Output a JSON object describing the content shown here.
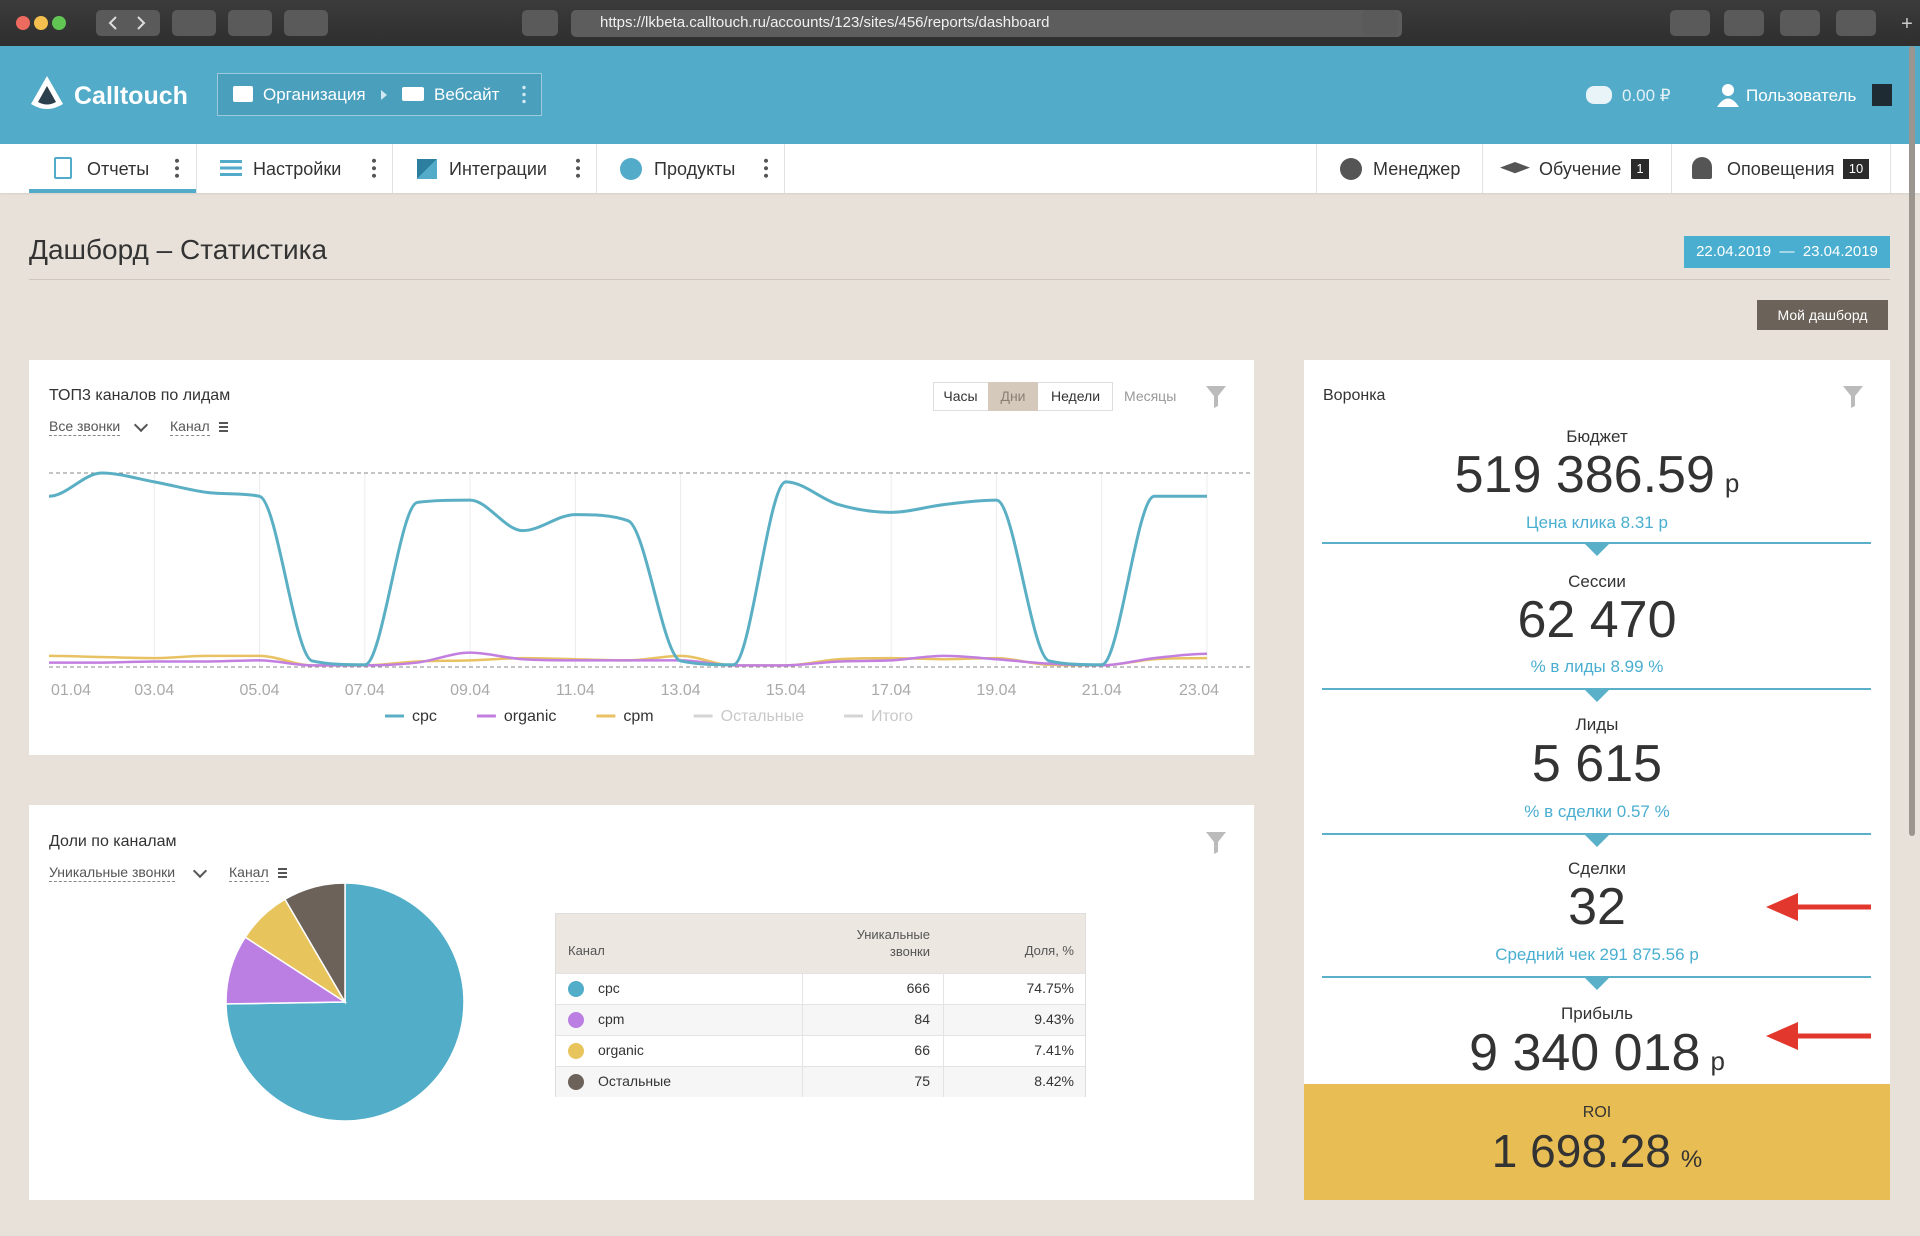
{
  "browser": {
    "url": "https://lkbeta.calltouch.ru/accounts/123/sites/456/reports/dashboard"
  },
  "header": {
    "logo": "Calltouch",
    "breadcrumb": [
      "Организация",
      "Вебсайт"
    ],
    "balance": "0.00 ₽",
    "user": "Пользователь"
  },
  "nav": {
    "left": [
      "Отчеты",
      "Настройки",
      "Интеграции",
      "Продукты"
    ],
    "right": [
      {
        "label": "Менеджер"
      },
      {
        "label": "Обучение",
        "badge": 1
      },
      {
        "label": "Оповещения",
        "badge": 10
      }
    ]
  },
  "page": {
    "title": "Дашборд – Статистика",
    "date_range": "22.04.2019  —  23.04.2019",
    "my_dashboard": "Мой дашборд"
  },
  "chart_data": [
    {
      "type": "line",
      "title": "ТОП3 каналов по лидам",
      "filters": [
        "Все звонки",
        "Канал"
      ],
      "periods": [
        "Часы",
        "Дни",
        "Недели",
        "Месяцы"
      ],
      "active_period": 1,
      "disabled_period": 3,
      "categories": [
        "01.04",
        null,
        "03.04",
        null,
        "05.04",
        null,
        "07.04",
        null,
        "09.04",
        null,
        "11.04",
        null,
        "13.04",
        null,
        "15.04",
        null,
        "17.04",
        null,
        "19.04",
        null,
        "21.04",
        null,
        "23.04"
      ],
      "ylim": [
        0,
        350
      ],
      "series": [
        {
          "name": "cpc",
          "color": "#5aafc4",
          "values": [
            308,
            350,
            334,
            315,
            308,
            11,
            4,
            297,
            301,
            246,
            275,
            264,
            11,
            4,
            334,
            293,
            279,
            293,
            301,
            11,
            4,
            308,
            308
          ]
        },
        {
          "name": "organic",
          "color": "#c27fe0",
          "values": [
            8,
            8,
            10,
            10,
            12,
            3,
            3,
            8,
            26,
            14,
            12,
            12,
            12,
            3,
            3,
            10,
            12,
            20,
            14,
            6,
            3,
            16,
            24
          ]
        },
        {
          "name": "cpm",
          "color": "#e8c262",
          "values": [
            20,
            18,
            16,
            20,
            20,
            3,
            3,
            10,
            12,
            16,
            14,
            12,
            20,
            3,
            3,
            14,
            16,
            14,
            16,
            4,
            3,
            14,
            16
          ]
        }
      ],
      "legend_disabled": [
        {
          "name": "Остальные",
          "color": "#d4d4d4"
        },
        {
          "name": "Итого",
          "color": "#d4d4d4"
        }
      ]
    },
    {
      "type": "pie",
      "title": "Доли по каналам",
      "filters": [
        "Уникальные звонки",
        "Канал"
      ],
      "categories": [
        "cpc",
        "cpm",
        "organic",
        "Остальные"
      ],
      "colors": [
        "#52adc8",
        "#bb7ee3",
        "#e8c45c",
        "#6d625a"
      ],
      "values": [
        74.75,
        9.43,
        7.41,
        8.42
      ],
      "value_labels": [
        "74.75%",
        "9.43%",
        "7.41%",
        "8.42%"
      ],
      "table": {
        "headers": [
          "Канал",
          "Уникальные звонки",
          "Доля, %"
        ],
        "counts": [
          666,
          84,
          66,
          75
        ]
      }
    }
  ],
  "funnel": {
    "title": "Воронка",
    "items": [
      {
        "label": "Бюджет",
        "value": "519 386.59",
        "unit": "р",
        "note": "Цена клика 8.31 р"
      },
      {
        "label": "Сессии",
        "value": "62 470",
        "note": "% в лиды 8.99 %"
      },
      {
        "label": "Лиды",
        "value": "5 615",
        "note": "% в сделки 0.57 %"
      },
      {
        "label": "Сделки",
        "value": "32",
        "note": "Средний чек 291 875.56 р"
      },
      {
        "label": "Прибыль",
        "value": "9 340 018",
        "unit": "р"
      }
    ],
    "roi": {
      "label": "ROI",
      "value": "1 698.28",
      "unit": "%"
    }
  }
}
